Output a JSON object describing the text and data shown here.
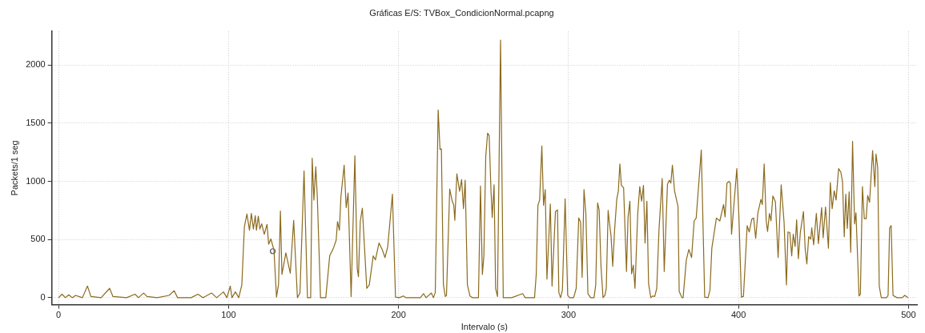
{
  "chart_data": {
    "type": "line",
    "title": "Gráficas E/S: TVBox_CondicionNormal.pcapng",
    "xlabel": "Intervalo (s)",
    "ylabel": "Packets/1 seg",
    "xlim": [
      -4,
      505
    ],
    "xticks": [
      0,
      100,
      200,
      300,
      400,
      500
    ],
    "ylim": [
      -60,
      2290
    ],
    "yticks": [
      0,
      500,
      1000,
      1500,
      2000
    ],
    "grid": true,
    "legend": false,
    "series": [
      {
        "color": "#8b6a1e",
        "marker": "none",
        "line_style": "solid",
        "x": [
          0,
          2,
          4,
          6,
          8,
          10,
          14,
          17,
          19,
          25,
          30,
          32,
          40,
          45,
          47,
          50,
          52,
          58,
          65,
          68,
          70,
          78,
          82,
          85,
          90,
          93,
          97,
          99,
          101,
          102,
          104,
          106,
          107.8,
          109.3,
          110.8,
          112.3,
          113.4,
          114.6,
          115.7,
          116.4,
          117.5,
          118.4,
          119.5,
          121,
          122.6,
          123.6,
          124.9,
          126.7,
          128.2,
          129.4,
          130.5,
          131.4,
          133.7,
          136.3,
          138.3,
          140.5,
          142,
          144.4,
          146.4,
          148.3,
          149.2,
          150.2,
          151.3,
          152.2,
          154.1,
          157.2,
          159.5,
          161.8,
          163.3,
          164.1,
          165.2,
          166.1,
          168,
          169.2,
          170.3,
          172.1,
          174.3,
          175.7,
          176.4,
          177.5,
          178.7,
          181.3,
          182.8,
          185.1,
          186.4,
          188.5,
          190.5,
          192,
          193.6,
          196.4,
          198.2,
          200.5,
          202.8,
          204.4,
          212.8,
          214.7,
          216.2,
          219.3,
          220.5,
          221.6,
          223.3,
          224.4,
          225.2,
          226.4,
          227.5,
          228.2,
          230.1,
          231.6,
          232.5,
          233.1,
          234.3,
          235.9,
          237.1,
          238.2,
          239.2,
          240.5,
          242,
          243.6,
          247,
          248.2,
          249.3,
          250.2,
          251.3,
          252.4,
          253.3,
          254.4,
          255.1,
          256.2,
          257.1,
          258.2,
          260,
          261.6,
          266.6,
          273,
          274.5,
          280,
          281,
          282,
          283,
          284.3,
          285.3,
          286.3,
          287.3,
          289.3,
          290.3,
          292.3,
          293.5,
          294.3,
          295.3,
          296.4,
          298,
          299.5,
          300.7,
          303,
          304.5,
          306,
          307.1,
          308,
          309.1,
          310.2,
          311.4,
          313,
          315,
          316,
          317.1,
          318,
          319.1,
          320.3,
          321.4,
          322.2,
          323.3,
          324,
          325,
          326,
          327.1,
          328.4,
          329.3,
          330.2,
          331.1,
          332.4,
          334.1,
          335,
          336.1,
          337.1,
          338.1,
          339.1,
          340.7,
          341.9,
          343,
          344.1,
          345,
          346.1,
          347.1,
          348.4,
          349.6,
          350.7,
          351.9,
          353.2,
          355.1,
          356.3,
          358.2,
          359.3,
          360.2,
          361.1,
          362.4,
          364.4,
          365.1,
          366.7,
          367.4,
          369.3,
          370.8,
          372.4,
          373.9,
          375.1,
          378.1,
          380.1,
          382.1,
          383.2,
          384.3,
          387,
          389,
          391.2,
          392.1,
          393.2,
          394.4,
          395.2,
          395.9,
          399,
          400.2,
          401.7,
          402.9,
          405.1,
          406.3,
          407.8,
          408.9,
          410.1,
          411.4,
          413.2,
          414,
          415.1,
          416.3,
          417.1,
          418.2,
          419.1,
          420.2,
          421.7,
          423.3,
          425.1,
          426.8,
          428.2,
          429.1,
          430.2,
          431.3,
          432.2,
          433.3,
          434.2,
          435.2,
          436.4,
          438.2,
          439.2,
          440.2,
          441.3,
          442.5,
          443.1,
          444.2,
          445.8,
          447,
          448.9,
          449.8,
          451.2,
          452.9,
          454,
          455.1,
          456.3,
          457.4,
          458.9,
          460.2,
          461.2,
          462.2,
          463.1,
          464,
          465.1,
          466,
          467.1,
          468.3,
          469.1,
          470.9,
          471.7,
          472.9,
          474,
          475.1,
          476,
          477.1,
          478.9,
          480.2,
          480.9,
          481.9,
          482.8,
          484,
          487.1,
          488,
          488.9,
          489.8,
          490.9,
          493.2,
          496.3,
          497.8,
          499.8
        ],
        "values": [
          0,
          30,
          0,
          25,
          0,
          20,
          0,
          100,
          10,
          0,
          80,
          10,
          0,
          30,
          0,
          40,
          10,
          0,
          20,
          60,
          0,
          0,
          30,
          0,
          40,
          0,
          50,
          0,
          100,
          0,
          50,
          0,
          110,
          610,
          720,
          580,
          725,
          590,
          705,
          580,
          700,
          590,
          635,
          545,
          630,
          460,
          505,
          410,
          5,
          115,
          745,
          200,
          385,
          210,
          665,
          0,
          40,
          1090,
          0,
          0,
          1200,
          840,
          1125,
          870,
          0,
          0,
          360,
          430,
          495,
          655,
          580,
          870,
          1140,
          775,
          900,
          10,
          1220,
          250,
          180,
          660,
          770,
          80,
          110,
          360,
          325,
          470,
          410,
          345,
          435,
          890,
          5,
          0,
          15,
          0,
          0,
          35,
          0,
          40,
          0,
          45,
          1615,
          1275,
          1280,
          110,
          10,
          20,
          935,
          830,
          795,
          665,
          1065,
          915,
          1015,
          765,
          1010,
          110,
          15,
          0,
          0,
          960,
          200,
          360,
          1215,
          1415,
          1395,
          915,
          690,
          970,
          80,
          10,
          2215,
          0,
          0,
          35,
          0,
          0,
          200,
          795,
          840,
          1305,
          795,
          930,
          160,
          805,
          100,
          740,
          755,
          45,
          0,
          65,
          850,
          20,
          0,
          0,
          80,
          685,
          650,
          175,
          930,
          720,
          35,
          0,
          0,
          110,
          815,
          755,
          270,
          0,
          20,
          80,
          750,
          650,
          535,
          270,
          580,
          850,
          915,
          1150,
          965,
          945,
          225,
          690,
          830,
          205,
          280,
          80,
          720,
          955,
          830,
          965,
          470,
          830,
          120,
          0,
          15,
          10,
          80,
          580,
          1025,
          225,
          975,
          1010,
          985,
          1140,
          915,
          785,
          55,
          0,
          0,
          325,
          415,
          345,
          660,
          685,
          1270,
          5,
          0,
          65,
          425,
          685,
          660,
          800,
          695,
          985,
          1000,
          985,
          545,
          1110,
          710,
          5,
          10,
          620,
          565,
          675,
          685,
          510,
          730,
          845,
          800,
          1150,
          660,
          570,
          725,
          660,
          875,
          825,
          345,
          970,
          650,
          110,
          565,
          560,
          360,
          545,
          440,
          670,
          335,
          565,
          740,
          425,
          290,
          525,
          505,
          600,
          455,
          725,
          465,
          775,
          515,
          780,
          425,
          990,
          765,
          920,
          840,
          1110,
          1080,
          995,
          525,
          890,
          595,
          910,
          390,
          1345,
          635,
          730,
          15,
          30,
          955,
          680,
          680,
          880,
          820,
          1265,
          955,
          1235,
          1115,
          100,
          0,
          0,
          20,
          600,
          620,
          20,
          0,
          0,
          20,
          0
        ]
      },
      {
        "type": "scatter",
        "color": "#555555",
        "marker": "circle",
        "x": [
          126
        ],
        "values": [
          400
        ]
      }
    ]
  }
}
